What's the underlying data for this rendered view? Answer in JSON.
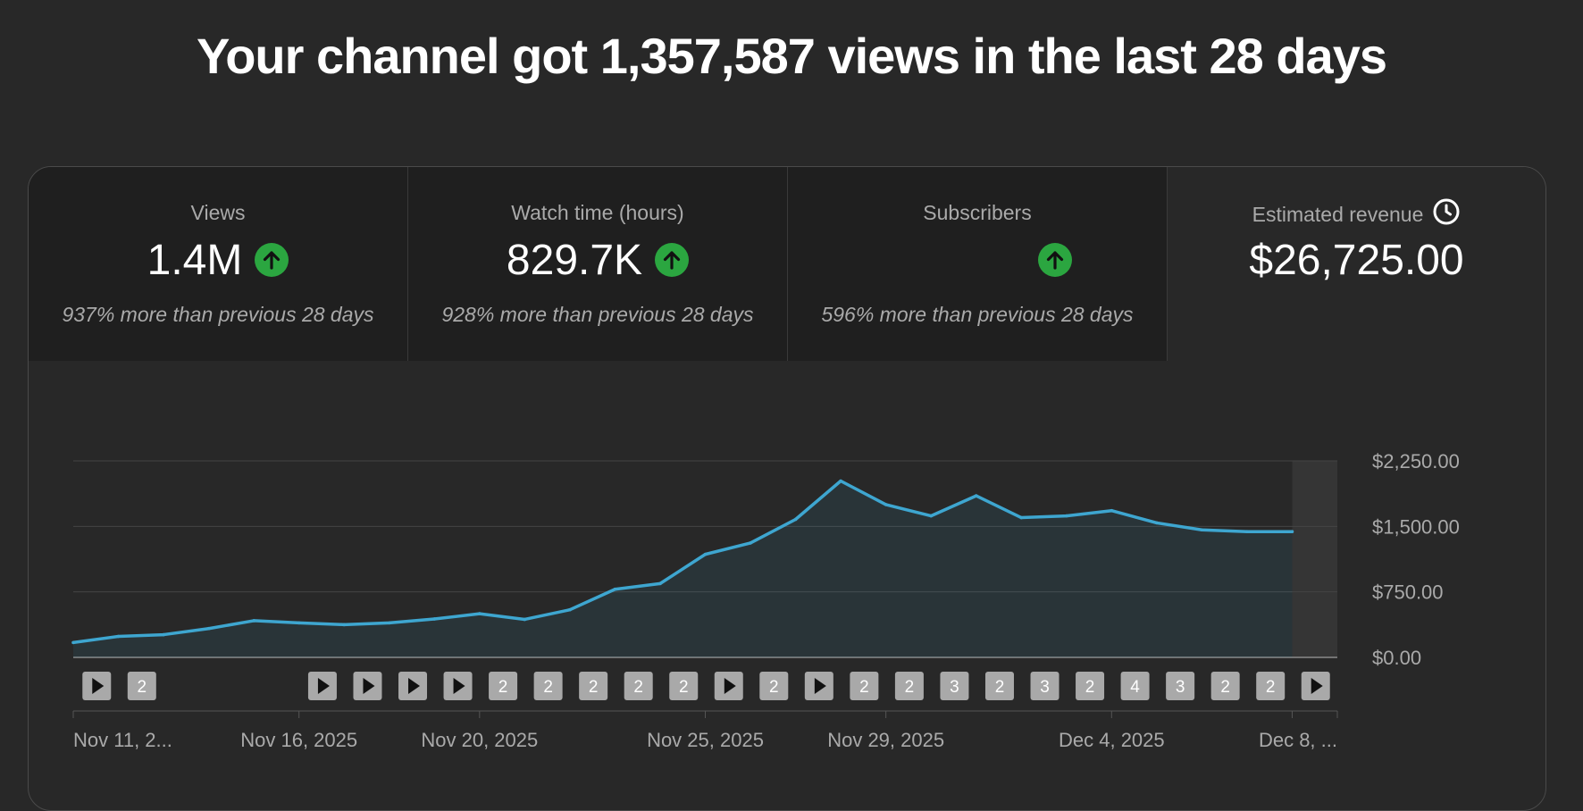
{
  "headline": "Your channel got 1,357,587 views in the last 28 days",
  "colors": {
    "line": "#3ea6d0",
    "up_badge": "#2ba640",
    "marker_bg": "#a9a9a9"
  },
  "metrics": [
    {
      "title": "Views",
      "value": "1.4M",
      "trend": "up",
      "note": "937% more than previous 28 days"
    },
    {
      "title": "Watch time (hours)",
      "value": "829.7K",
      "trend": "up",
      "note": "928% more than previous 28 days"
    },
    {
      "title": "Subscribers",
      "value": "",
      "trend": "up",
      "note": "596% more than previous 28 days"
    },
    {
      "title": "Estimated revenue",
      "value": "$26,725.00",
      "icon": "clock-icon"
    }
  ],
  "chart_data": {
    "type": "area",
    "title": "Estimated revenue",
    "x_days": [
      "Nov 11",
      "Nov 12",
      "Nov 13",
      "Nov 14",
      "Nov 15",
      "Nov 16",
      "Nov 17",
      "Nov 18",
      "Nov 19",
      "Nov 20",
      "Nov 21",
      "Nov 22",
      "Nov 23",
      "Nov 24",
      "Nov 25",
      "Nov 26",
      "Nov 27",
      "Nov 28",
      "Nov 29",
      "Nov 30",
      "Dec 1",
      "Dec 2",
      "Dec 3",
      "Dec 4",
      "Dec 5",
      "Dec 6",
      "Dec 7",
      "Dec 8"
    ],
    "values": [
      170,
      240,
      260,
      330,
      420,
      395,
      375,
      395,
      440,
      500,
      435,
      545,
      780,
      845,
      1180,
      1310,
      1580,
      2020,
      1750,
      1620,
      1850,
      1600,
      1620,
      1680,
      1540,
      1460,
      1440,
      1440
    ],
    "partial_last_day": true,
    "ylim": [
      0,
      2250
    ],
    "y_ticks": [
      {
        "value": 2250,
        "label": "$2,250.00"
      },
      {
        "value": 1500,
        "label": "$1,500.00"
      },
      {
        "value": 750,
        "label": "$750.00"
      },
      {
        "value": 0,
        "label": "$0.00"
      }
    ],
    "x_ticks": [
      {
        "day": 0,
        "label": "Nov 11, 2..."
      },
      {
        "day": 5,
        "label": "Nov 16, 2025"
      },
      {
        "day": 9,
        "label": "Nov 20, 2025"
      },
      {
        "day": 14,
        "label": "Nov 25, 2025"
      },
      {
        "day": 18,
        "label": "Nov 29, 2025"
      },
      {
        "day": 23,
        "label": "Dec 4, 2025"
      },
      {
        "day": 27,
        "label": "Dec 8, ..."
      }
    ],
    "video_markers": [
      {
        "day": 1,
        "type": "play"
      },
      {
        "day": 2,
        "type": "count",
        "label": "2"
      },
      {
        "day": 6,
        "type": "play"
      },
      {
        "day": 7,
        "type": "play"
      },
      {
        "day": 8,
        "type": "play"
      },
      {
        "day": 9,
        "type": "play"
      },
      {
        "day": 10,
        "type": "count",
        "label": "2"
      },
      {
        "day": 11,
        "type": "count",
        "label": "2"
      },
      {
        "day": 12,
        "type": "count",
        "label": "2"
      },
      {
        "day": 13,
        "type": "count",
        "label": "2"
      },
      {
        "day": 14,
        "type": "count",
        "label": "2"
      },
      {
        "day": 15,
        "type": "play"
      },
      {
        "day": 16,
        "type": "count",
        "label": "2"
      },
      {
        "day": 17,
        "type": "play"
      },
      {
        "day": 18,
        "type": "count",
        "label": "2"
      },
      {
        "day": 19,
        "type": "count",
        "label": "2"
      },
      {
        "day": 20,
        "type": "count",
        "label": "3"
      },
      {
        "day": 21,
        "type": "count",
        "label": "2"
      },
      {
        "day": 22,
        "type": "count",
        "label": "3"
      },
      {
        "day": 23,
        "type": "count",
        "label": "2"
      },
      {
        "day": 24,
        "type": "count",
        "label": "4"
      },
      {
        "day": 25,
        "type": "count",
        "label": "3"
      },
      {
        "day": 26,
        "type": "count",
        "label": "2"
      },
      {
        "day": 27,
        "type": "count",
        "label": "2"
      },
      {
        "day": 28,
        "type": "play"
      }
    ]
  }
}
